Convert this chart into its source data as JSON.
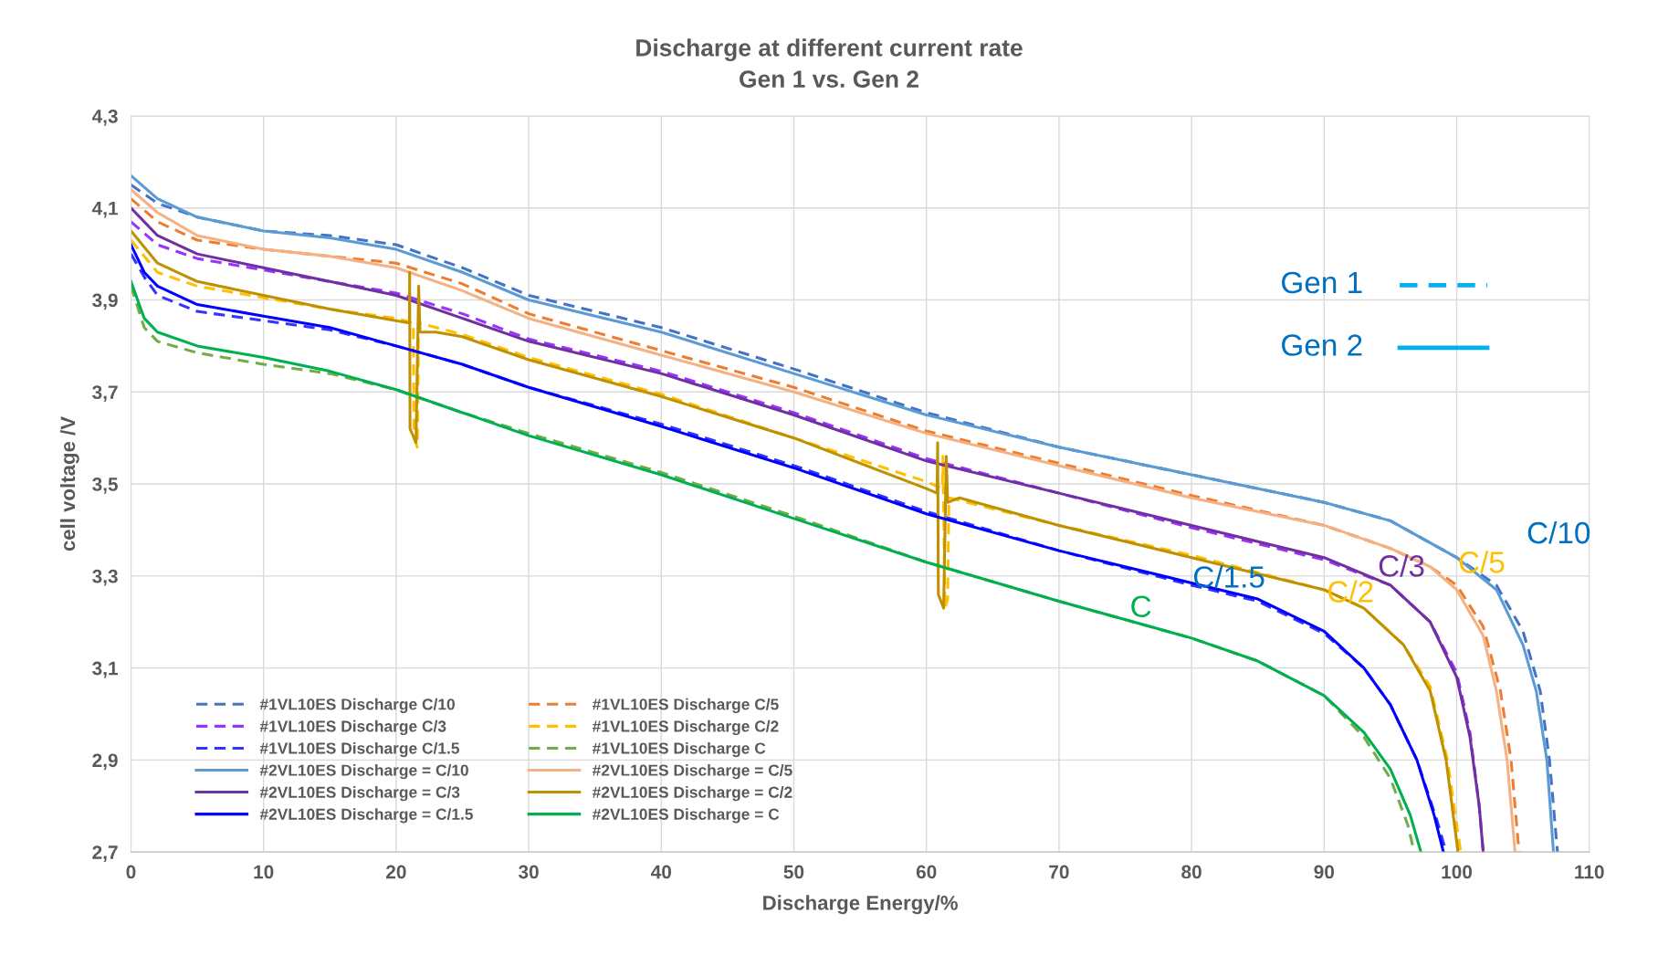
{
  "chart_data": {
    "type": "line",
    "title": "Discharge at different current rate\nGen 1 vs. Gen 2",
    "xlabel": "Discharge Energy/%",
    "ylabel": "cell voltage /V",
    "xlim": [
      0,
      110
    ],
    "xticks": [
      0,
      10,
      20,
      30,
      40,
      50,
      60,
      70,
      80,
      90,
      100,
      110
    ],
    "ylim": [
      2.7,
      4.3
    ],
    "yticks": [
      {
        "value": 2.7,
        "label": "2,7"
      },
      {
        "value": 2.9,
        "label": "2,9"
      },
      {
        "value": 3.1,
        "label": "3,1"
      },
      {
        "value": 3.3,
        "label": "3,3"
      },
      {
        "value": 3.5,
        "label": "3,5"
      },
      {
        "value": 3.7,
        "label": "3,7"
      },
      {
        "value": 3.9,
        "label": "3,9"
      },
      {
        "value": 4.1,
        "label": "4,1"
      },
      {
        "value": 4.3,
        "label": "4,3"
      }
    ],
    "grid": true,
    "legend": "bottom left",
    "marker": "none",
    "series": [
      {
        "name": "#1VL10ES Discharge C/10",
        "color": "#4472c4",
        "line_style": "dashed",
        "x": [
          0,
          2,
          5,
          10,
          15,
          20,
          25,
          30,
          40,
          50,
          60,
          70,
          80,
          90,
          95,
          100,
          103,
          105,
          106.3,
          107,
          107.6
        ],
        "values": [
          4.15,
          4.11,
          4.08,
          4.05,
          4.04,
          4.02,
          3.97,
          3.91,
          3.84,
          3.75,
          3.655,
          3.58,
          3.52,
          3.46,
          3.42,
          3.34,
          3.28,
          3.18,
          3.05,
          2.9,
          2.7
        ]
      },
      {
        "name": "#1VL10ES Discharge C/5",
        "color": "#ed7d31",
        "line_style": "dashed",
        "x": [
          0,
          2,
          5,
          10,
          15,
          20,
          25,
          30,
          40,
          50,
          60,
          70,
          80,
          90,
          95,
          98,
          100,
          102,
          103.3,
          104.1,
          104.7
        ],
        "values": [
          4.12,
          4.07,
          4.03,
          4.01,
          3.995,
          3.98,
          3.935,
          3.87,
          3.79,
          3.71,
          3.615,
          3.545,
          3.475,
          3.41,
          3.36,
          3.32,
          3.28,
          3.19,
          3.05,
          2.9,
          2.7
        ]
      },
      {
        "name": "#1VL10ES Discharge C/3",
        "color": "#9933ff",
        "line_style": "dashed",
        "x": [
          0,
          2,
          5,
          10,
          15,
          20,
          25,
          30,
          40,
          50,
          60,
          70,
          80,
          90,
          95,
          98,
          100,
          101,
          101.7,
          102
        ],
        "values": [
          4.07,
          4.02,
          3.99,
          3.965,
          3.94,
          3.915,
          3.87,
          3.815,
          3.745,
          3.655,
          3.555,
          3.48,
          3.405,
          3.335,
          3.28,
          3.2,
          3.09,
          2.96,
          2.8,
          2.7
        ]
      },
      {
        "name": "#1VL10ES Discharge C/2",
        "color": "#ffc000",
        "line_style": "dashed",
        "x": [
          0,
          2,
          5,
          10,
          15,
          20,
          21.3,
          21.35,
          21.6,
          21.7,
          25,
          30,
          40,
          50,
          60,
          61.2,
          61.25,
          61.4,
          61.6,
          61.7,
          70,
          80,
          90,
          93,
          96,
          98,
          99.3,
          100.3
        ],
        "values": [
          4.03,
          3.96,
          3.93,
          3.905,
          3.88,
          3.86,
          3.85,
          3.6,
          3.58,
          3.85,
          3.825,
          3.775,
          3.695,
          3.6,
          3.505,
          3.49,
          3.56,
          3.23,
          3.25,
          3.47,
          3.41,
          3.345,
          3.27,
          3.23,
          3.15,
          3.06,
          2.9,
          2.7
        ]
      },
      {
        "name": "#1VL10ES Discharge C/1.5",
        "color": "#3333ff",
        "line_style": "dashed",
        "x": [
          0,
          1,
          2,
          5,
          10,
          15,
          20,
          25,
          30,
          40,
          50,
          60,
          70,
          80,
          85,
          90,
          93,
          95,
          97,
          98.5,
          99.2
        ],
        "values": [
          4.0,
          3.95,
          3.91,
          3.875,
          3.855,
          3.835,
          3.8,
          3.76,
          3.71,
          3.63,
          3.54,
          3.44,
          3.355,
          3.28,
          3.245,
          3.175,
          3.1,
          3.02,
          2.9,
          2.77,
          2.7
        ]
      },
      {
        "name": "#1VL10ES Discharge C",
        "color": "#70ad47",
        "line_style": "dashed",
        "x": [
          0,
          1,
          2,
          5,
          10,
          15,
          20,
          25,
          30,
          40,
          50,
          60,
          70,
          80,
          85,
          90,
          93,
          95,
          96.3,
          96.8
        ],
        "values": [
          3.93,
          3.84,
          3.81,
          3.785,
          3.76,
          3.74,
          3.705,
          3.655,
          3.61,
          3.525,
          3.43,
          3.33,
          3.245,
          3.165,
          3.115,
          3.04,
          2.95,
          2.86,
          2.76,
          2.7
        ]
      },
      {
        "name": "#2VL10ES Discharge = C/10",
        "color": "#5b9bd5",
        "line_style": "solid",
        "x": [
          0,
          2,
          5,
          10,
          15,
          20,
          25,
          30,
          40,
          50,
          60,
          70,
          80,
          90,
          95,
          100,
          103,
          105,
          106,
          106.8,
          107.3
        ],
        "values": [
          4.17,
          4.12,
          4.08,
          4.05,
          4.035,
          4.01,
          3.96,
          3.9,
          3.83,
          3.74,
          3.65,
          3.58,
          3.52,
          3.46,
          3.42,
          3.34,
          3.27,
          3.15,
          3.05,
          2.9,
          2.7
        ]
      },
      {
        "name": "#2VL10ES Discharge = C/5",
        "color": "#f4b183",
        "line_style": "solid",
        "x": [
          0,
          2,
          5,
          10,
          15,
          20,
          25,
          30,
          40,
          50,
          60,
          70,
          80,
          90,
          95,
          98,
          100,
          102,
          103,
          103.8,
          104.4
        ],
        "values": [
          4.14,
          4.09,
          4.04,
          4.01,
          3.995,
          3.97,
          3.92,
          3.86,
          3.78,
          3.7,
          3.61,
          3.54,
          3.47,
          3.41,
          3.36,
          3.32,
          3.27,
          3.17,
          3.05,
          2.9,
          2.7
        ]
      },
      {
        "name": "#2VL10ES Discharge = C/3",
        "color": "#7030a0",
        "line_style": "solid",
        "x": [
          0,
          2,
          5,
          10,
          15,
          20,
          25,
          30,
          40,
          50,
          60,
          70,
          80,
          90,
          95,
          98,
          100,
          101,
          101.7,
          102
        ],
        "values": [
          4.1,
          4.04,
          4.0,
          3.97,
          3.94,
          3.91,
          3.86,
          3.81,
          3.74,
          3.65,
          3.55,
          3.48,
          3.41,
          3.34,
          3.28,
          3.2,
          3.08,
          2.95,
          2.8,
          2.7
        ]
      },
      {
        "name": "#2VL10ES Discharge = C/2",
        "color": "#bf9000",
        "line_style": "solid",
        "x": [
          0,
          2,
          5,
          10,
          15,
          20,
          21,
          21.02,
          21.05,
          21.5,
          21.7,
          21.8,
          23,
          25,
          30,
          40,
          50,
          60,
          60.8,
          60.85,
          60.9,
          61.3,
          61.5,
          61.6,
          62.5,
          70,
          80,
          90,
          93,
          96,
          98,
          99.2,
          100.1
        ],
        "values": [
          4.05,
          3.98,
          3.94,
          3.91,
          3.88,
          3.855,
          3.85,
          3.96,
          3.62,
          3.59,
          3.93,
          3.83,
          3.83,
          3.82,
          3.77,
          3.69,
          3.6,
          3.49,
          3.48,
          3.59,
          3.26,
          3.23,
          3.56,
          3.46,
          3.47,
          3.41,
          3.34,
          3.27,
          3.23,
          3.15,
          3.05,
          2.9,
          2.7
        ]
      },
      {
        "name": "#2VL10ES Discharge = C/1.5",
        "color": "#0000ff",
        "line_style": "solid",
        "x": [
          0,
          1,
          2,
          5,
          10,
          15,
          20,
          25,
          30,
          40,
          50,
          60,
          70,
          80,
          85,
          90,
          93,
          95,
          97,
          98.3,
          99
        ],
        "values": [
          4.02,
          3.96,
          3.93,
          3.89,
          3.865,
          3.84,
          3.8,
          3.76,
          3.71,
          3.625,
          3.535,
          3.435,
          3.355,
          3.285,
          3.25,
          3.18,
          3.1,
          3.02,
          2.9,
          2.78,
          2.7
        ]
      },
      {
        "name": "#2VL10ES Discharge = C",
        "color": "#00b050",
        "line_style": "solid",
        "x": [
          0,
          1,
          2,
          5,
          10,
          15,
          20,
          25,
          30,
          40,
          50,
          60,
          70,
          80,
          85,
          90,
          93,
          95,
          96.5,
          97.3
        ],
        "values": [
          3.94,
          3.86,
          3.83,
          3.8,
          3.775,
          3.745,
          3.705,
          3.655,
          3.605,
          3.52,
          3.425,
          3.33,
          3.245,
          3.165,
          3.115,
          3.04,
          2.96,
          2.88,
          2.78,
          2.7
        ]
      }
    ],
    "annotations": [
      "C/10",
      "C/5",
      "C/3",
      "C/2",
      "C/1.5",
      "C",
      "Gen 1",
      "Gen 2"
    ]
  }
}
